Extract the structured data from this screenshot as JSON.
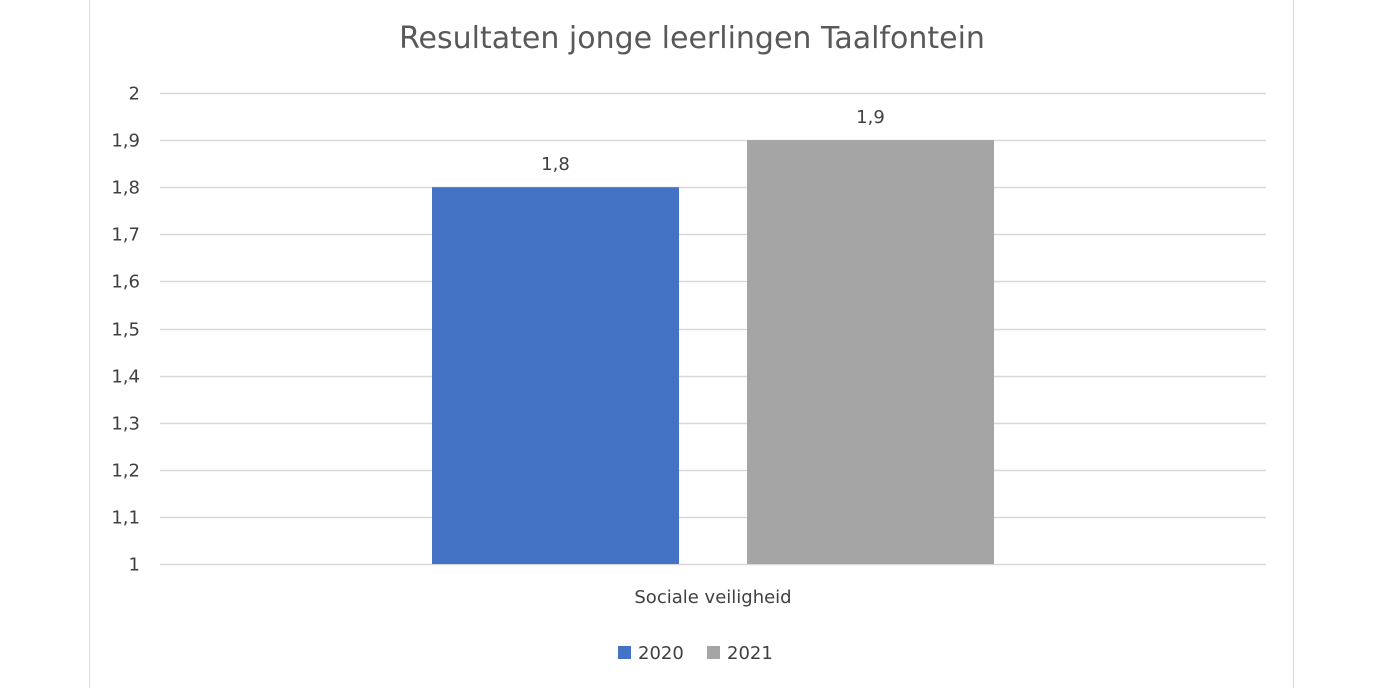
{
  "chart_data": {
    "type": "bar",
    "title": "Resultaten jonge leerlingen Taalfontein",
    "xlabel": "",
    "ylabel": "",
    "categories": [
      "Sociale veiligheid"
    ],
    "series": [
      {
        "name": "2020",
        "values": [
          1.8
        ],
        "labels": [
          "1,8"
        ],
        "color": "#4472c4"
      },
      {
        "name": "2021",
        "values": [
          1.9
        ],
        "labels": [
          "1,9"
        ],
        "color": "#a5a5a5"
      }
    ],
    "ylim": [
      1,
      2
    ],
    "yticks": [
      1,
      1.1,
      1.2,
      1.3,
      1.4,
      1.5,
      1.6,
      1.7,
      1.8,
      1.9,
      2
    ],
    "ytick_labels": [
      "1",
      "1,1",
      "1,2",
      "1,3",
      "1,4",
      "1,5",
      "1,6",
      "1,7",
      "1,8",
      "1,9",
      "2"
    ],
    "grid": true,
    "gridline_color": "#d9d9d9",
    "legend_position": "bottom"
  }
}
